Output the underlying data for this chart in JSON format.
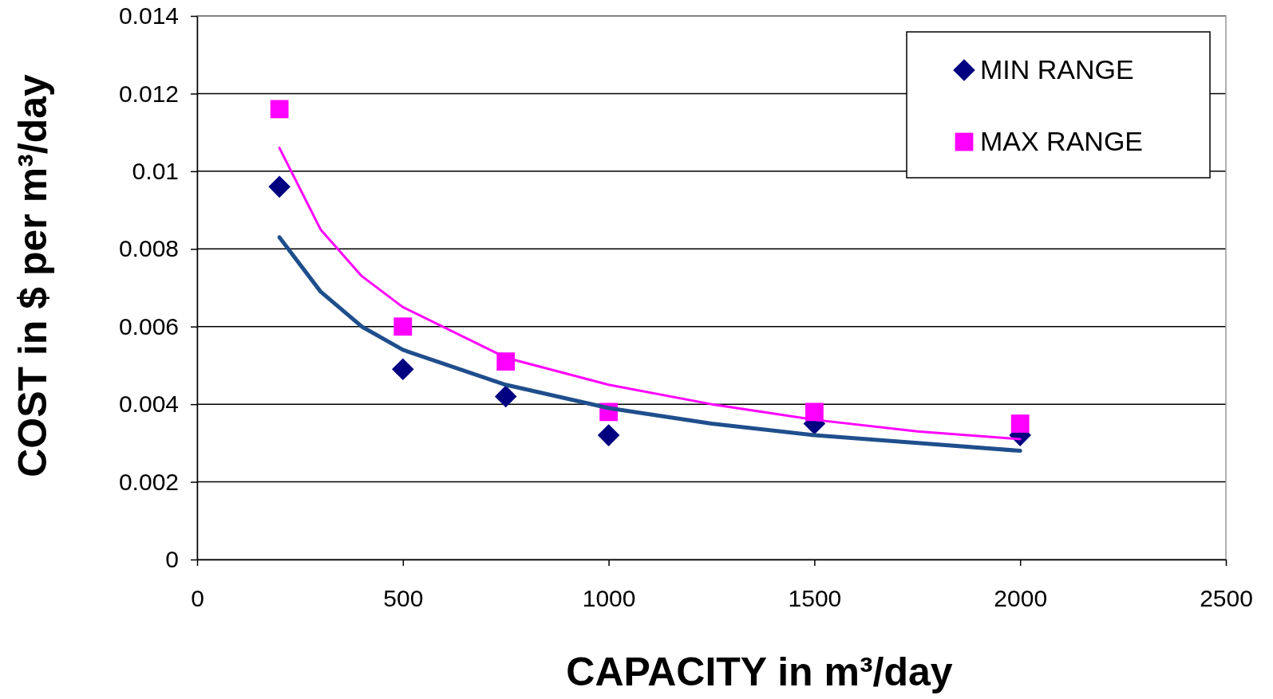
{
  "chart_data": {
    "type": "scatter",
    "xlabel": "CAPACITY in m³/day",
    "ylabel": "COST in $ per m³/day",
    "xlim": [
      0,
      2500
    ],
    "xticks": [
      0,
      500,
      1000,
      1500,
      2000,
      2500
    ],
    "ylim": [
      0,
      0.014
    ],
    "yticks": [
      0,
      0.002,
      0.004,
      0.006,
      0.008,
      0.01,
      0.012,
      0.014
    ],
    "grid": "y",
    "legend": "top right",
    "series": [
      {
        "type": "line",
        "color": "#1f4e8c",
        "x": [
          200,
          300,
          400,
          500,
          750,
          1000,
          1250,
          1500,
          1750,
          2000
        ],
        "values": [
          0.0083,
          0.0069,
          0.006,
          0.0054,
          0.0045,
          0.0039,
          0.0035,
          0.0032,
          0.003,
          0.0028
        ]
      },
      {
        "type": "line",
        "color": "#ff00ff",
        "x": [
          200,
          300,
          400,
          500,
          750,
          1000,
          1250,
          1500,
          1750,
          2000
        ],
        "values": [
          0.0106,
          0.0085,
          0.0073,
          0.0065,
          0.0052,
          0.0045,
          0.004,
          0.0036,
          0.0033,
          0.0031
        ]
      },
      {
        "name": "MIN RANGE",
        "color": "#000080",
        "marker": "diamond",
        "x": [
          200,
          500,
          750,
          1000,
          1500,
          2000
        ],
        "values": [
          0.0096,
          0.0049,
          0.0042,
          0.0032,
          0.0035,
          0.0032
        ]
      },
      {
        "name": "MAX RANGE",
        "color": "#ff00ff",
        "marker": "square",
        "x": [
          200,
          500,
          750,
          1000,
          1500,
          2000
        ],
        "values": [
          0.0116,
          0.006,
          0.0051,
          0.0038,
          0.0038,
          0.0035
        ]
      }
    ]
  }
}
